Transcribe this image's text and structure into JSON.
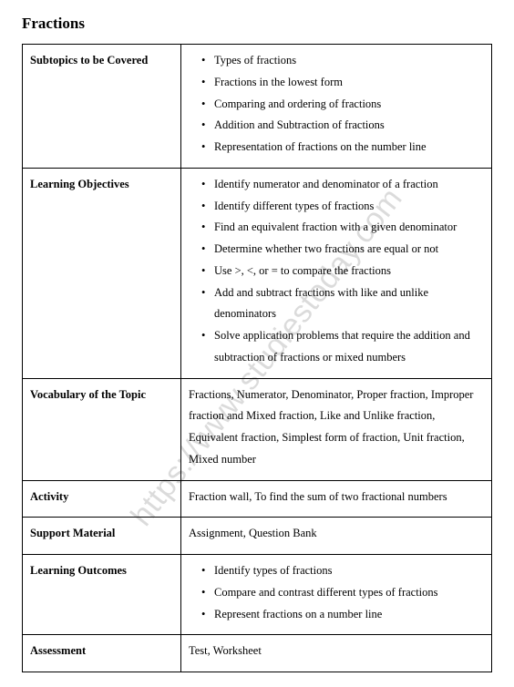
{
  "title": "Fractions",
  "watermark": "https://www.studiestoday.com",
  "rows": {
    "subtopics": {
      "label": "Subtopics to be Covered",
      "items": [
        "Types of fractions",
        "Fractions in the lowest form",
        "Comparing and ordering of fractions",
        "Addition and Subtraction of fractions",
        "Representation of fractions on the number line"
      ]
    },
    "objectives": {
      "label": "Learning Objectives",
      "items": [
        "Identify numerator and denominator of a fraction",
        "Identify different types of fractions",
        "Find an equivalent fraction with a given denominator",
        "Determine whether two fractions are equal or not",
        "Use >, <, or = to compare the fractions",
        "Add and subtract fractions with like and unlike denominators",
        "Solve application problems that require the addition and subtraction of fractions or mixed numbers"
      ]
    },
    "vocabulary": {
      "label": "Vocabulary of the Topic",
      "text": "Fractions, Numerator, Denominator, Proper fraction, Improper fraction and Mixed fraction, Like and Unlike fraction, Equivalent fraction, Simplest form of fraction, Unit fraction, Mixed number"
    },
    "activity": {
      "label": "Activity",
      "text": "Fraction wall, To find the sum of two fractional numbers"
    },
    "support": {
      "label": "Support Material",
      "text": "Assignment, Question Bank"
    },
    "outcomes": {
      "label": "Learning Outcomes",
      "items": [
        "Identify types of fractions",
        "Compare and contrast different types of fractions",
        "Represent fractions on a number line"
      ]
    },
    "assessment": {
      "label": "Assessment",
      "text": "Test, Worksheet"
    }
  }
}
